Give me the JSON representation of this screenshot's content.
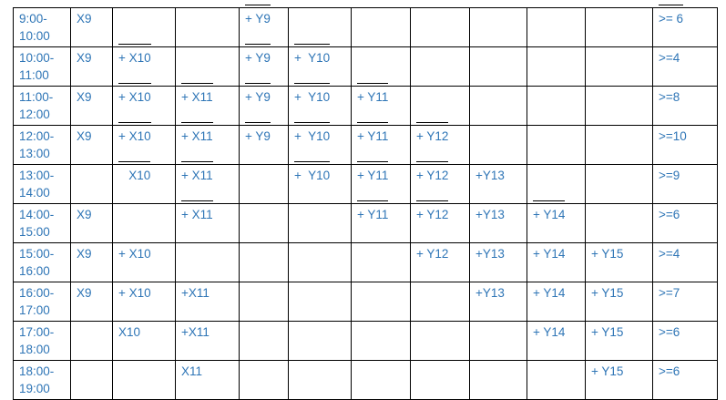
{
  "colors": {
    "text": "#2e75b6",
    "border": "#000000",
    "negation_bar": "#000000"
  },
  "rows": [
    {
      "time": "9:00-\n10:00",
      "cells": [
        {
          "t": "X9"
        },
        {
          "t": ""
        },
        {
          "t": ""
        },
        {
          "t": "+ Y9",
          "neg": true
        },
        {
          "t": ""
        },
        {
          "t": ""
        },
        {
          "t": ""
        },
        {
          "t": ""
        },
        {
          "t": ""
        },
        {
          "t": ""
        },
        {
          "t": ">= 6",
          "neg": true
        }
      ]
    },
    {
      "time": "10:00-\n11:00",
      "cells": [
        {
          "t": "X9"
        },
        {
          "t": "+ X10",
          "neg": true
        },
        {
          "t": ""
        },
        {
          "t": "+ Y9",
          "neg": true
        },
        {
          "t": "+  Y10",
          "neg": true
        },
        {
          "t": ""
        },
        {
          "t": ""
        },
        {
          "t": ""
        },
        {
          "t": ""
        },
        {
          "t": ""
        },
        {
          "t": ">=4"
        }
      ]
    },
    {
      "time": "11:00-\n12:00",
      "cells": [
        {
          "t": "X9"
        },
        {
          "t": "+ X10",
          "neg": true
        },
        {
          "t": "+ X11",
          "neg": true
        },
        {
          "t": "+ Y9",
          "neg": true
        },
        {
          "t": "+  Y10",
          "neg": true
        },
        {
          "t": "+ Y11",
          "neg": true
        },
        {
          "t": ""
        },
        {
          "t": ""
        },
        {
          "t": ""
        },
        {
          "t": ""
        },
        {
          "t": ">=8"
        }
      ]
    },
    {
      "time": "12:00-\n13:00",
      "cells": [
        {
          "t": "X9"
        },
        {
          "t": "+ X10",
          "neg": true
        },
        {
          "t": "+ X11",
          "neg": true
        },
        {
          "t": "+ Y9",
          "neg": true
        },
        {
          "t": "+  Y10",
          "neg": true
        },
        {
          "t": "+ Y11",
          "neg": true
        },
        {
          "t": "+ Y12",
          "neg": true
        },
        {
          "t": ""
        },
        {
          "t": ""
        },
        {
          "t": ""
        },
        {
          "t": ">=10"
        }
      ]
    },
    {
      "time": "13:00-\n14:00",
      "cells": [
        {
          "t": ""
        },
        {
          "t": "   X10",
          "neg": true
        },
        {
          "t": "+ X11",
          "neg": true
        },
        {
          "t": ""
        },
        {
          "t": "+  Y10",
          "neg": true
        },
        {
          "t": "+ Y11",
          "neg": true
        },
        {
          "t": "+ Y12",
          "neg": true
        },
        {
          "t": "+Y13"
        },
        {
          "t": ""
        },
        {
          "t": ""
        },
        {
          "t": ">=9"
        }
      ]
    },
    {
      "time": "14:00-\n15:00",
      "cells": [
        {
          "t": "X9"
        },
        {
          "t": ""
        },
        {
          "t": "+ X11",
          "neg": true
        },
        {
          "t": ""
        },
        {
          "t": ""
        },
        {
          "t": "+ Y11",
          "neg": true
        },
        {
          "t": "+ Y12",
          "neg": true
        },
        {
          "t": "+Y13"
        },
        {
          "t": "+ Y14",
          "neg": true
        },
        {
          "t": ""
        },
        {
          "t": ">=6"
        }
      ]
    },
    {
      "time": "15:00-\n16:00",
      "cells": [
        {
          "t": "X9"
        },
        {
          "t": "+ X10"
        },
        {
          "t": ""
        },
        {
          "t": ""
        },
        {
          "t": ""
        },
        {
          "t": ""
        },
        {
          "t": "+ Y12"
        },
        {
          "t": "+Y13"
        },
        {
          "t": "+ Y14"
        },
        {
          "t": "+ Y15"
        },
        {
          "t": ">=4"
        }
      ]
    },
    {
      "time": "16:00-\n17:00",
      "cells": [
        {
          "t": "X9"
        },
        {
          "t": "+ X10"
        },
        {
          "t": "+X11"
        },
        {
          "t": ""
        },
        {
          "t": ""
        },
        {
          "t": ""
        },
        {
          "t": ""
        },
        {
          "t": "+Y13"
        },
        {
          "t": "+ Y14"
        },
        {
          "t": "+ Y15"
        },
        {
          "t": ">=7"
        }
      ]
    },
    {
      "time": "17:00-\n18:00",
      "cells": [
        {
          "t": ""
        },
        {
          "t": "X10"
        },
        {
          "t": "+X11"
        },
        {
          "t": ""
        },
        {
          "t": ""
        },
        {
          "t": ""
        },
        {
          "t": ""
        },
        {
          "t": ""
        },
        {
          "t": "+ Y14"
        },
        {
          "t": "+ Y15"
        },
        {
          "t": ">=6"
        }
      ]
    },
    {
      "time": "18:00-\n19:00",
      "cells": [
        {
          "t": ""
        },
        {
          "t": ""
        },
        {
          "t": "X11"
        },
        {
          "t": ""
        },
        {
          "t": ""
        },
        {
          "t": ""
        },
        {
          "t": ""
        },
        {
          "t": ""
        },
        {
          "t": ""
        },
        {
          "t": "+ Y15"
        },
        {
          "t": ">=6"
        }
      ]
    }
  ]
}
